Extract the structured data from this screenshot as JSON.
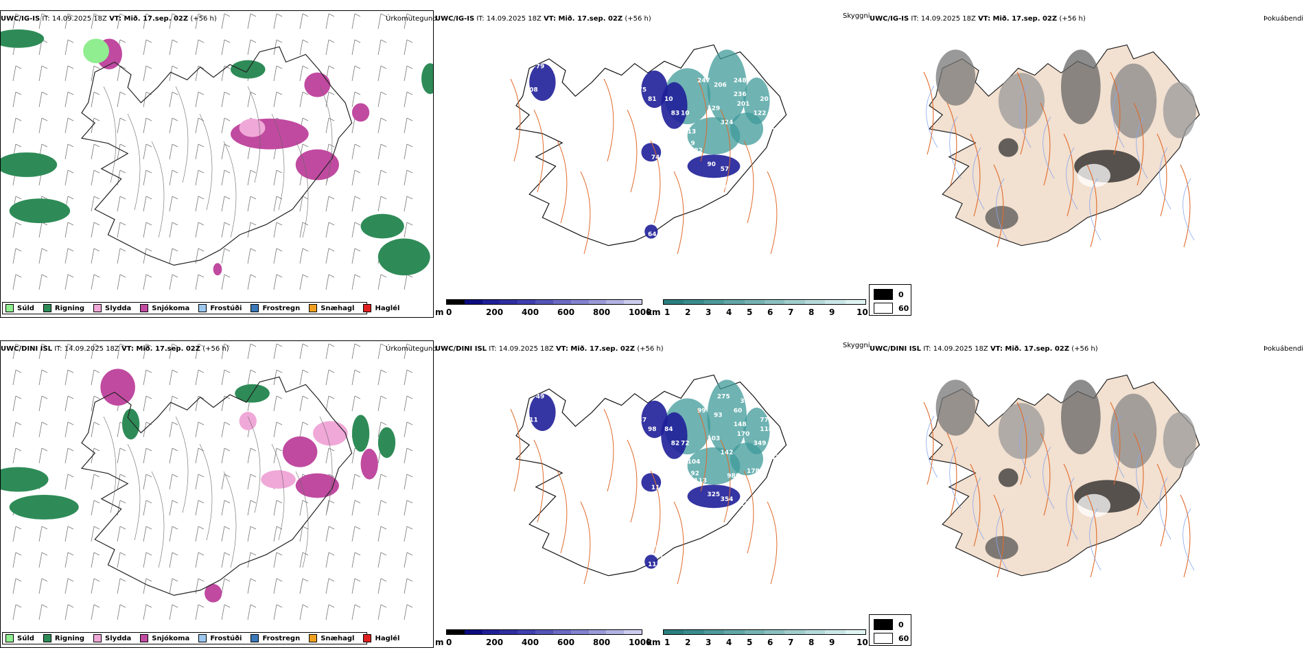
{
  "colors": {
    "drizzle": "#90ee90",
    "rain": "#2e8b57",
    "sleet": "#f0a8d8",
    "snow": "#c04aa0",
    "freezing_drizzle": "#9cc8f0",
    "freezing_rain": "#3a78b8",
    "snow_grains": "#f0a020",
    "hail": "#e02020",
    "land_tan": "#f2e0d0",
    "roads": "#e06a2a",
    "rivers": "#8aa8ee",
    "cloud_base_dark": "#1f1f99",
    "cloud_top_teal": "#3f9a9a"
  },
  "precip_legend": [
    {
      "label": "Súld",
      "color": "#90ee90"
    },
    {
      "label": "Rigning",
      "color": "#2e8b57"
    },
    {
      "label": "Slydda",
      "color": "#f0a8d8"
    },
    {
      "label": "Snjókoma",
      "color": "#c04aa0"
    },
    {
      "label": "Frostúði",
      "color": "#9cc8f0"
    },
    {
      "label": "Frostregn",
      "color": "#3a78b8"
    },
    {
      "label": "Snæhagl",
      "color": "#f0a020"
    },
    {
      "label": "Haglél",
      "color": "#e02020"
    }
  ],
  "cloud_base_legend": {
    "unit": "m",
    "ticks": [
      "0",
      "200",
      "400",
      "600",
      "800",
      "1000"
    ]
  },
  "cloud_top_legend": {
    "unit": "km",
    "ticks": [
      "1",
      "2",
      "3",
      "4",
      "5",
      "6",
      "7",
      "8",
      "9",
      "10"
    ]
  },
  "fog_legend": {
    "values": [
      "0",
      "60"
    ]
  },
  "rows": [
    {
      "model": "UWC/IG-IS",
      "it": "IT: 14.09.2025 18Z",
      "vt": "VT: Mið. 17.sep. 02Z",
      "lead": "(+56 h)",
      "precip_name": "Úrkomutegund",
      "cloud_name": "Skyggni",
      "fog_name": "Þokuábendi",
      "cloud_labels": [
        "79",
        "79",
        "08",
        "75",
        "81",
        "10",
        "71",
        "83",
        "10",
        "13",
        "37",
        "94",
        "74",
        "82",
        "90",
        "9",
        "57",
        "137",
        "64",
        "247",
        "206",
        "248",
        "236",
        "201",
        "129",
        "324",
        "122",
        "20",
        "42",
        "89",
        "74"
      ]
    },
    {
      "model": "UWC/DINI ISL",
      "it": "IT: 14.09.2025 18Z",
      "vt": "VT: Mið. 17.sep. 02Z",
      "lead": "(+56 h)",
      "precip_name": "Úrkomutegund",
      "cloud_name": "Skyggni",
      "fog_name": "Þokuábendi",
      "cloud_labels": [
        "49",
        "78",
        "11",
        "37",
        "98",
        "84",
        "68",
        "82",
        "72",
        "104",
        "108",
        "92",
        "111",
        "113",
        "325",
        "92",
        "354",
        "74",
        "113",
        "99",
        "93",
        "60",
        "148",
        "170",
        "103",
        "142",
        "349",
        "118",
        "242",
        "94",
        "89",
        "178",
        "986",
        "108",
        "93",
        "12",
        "79",
        "51",
        "275",
        "30",
        "77"
      ]
    }
  ]
}
